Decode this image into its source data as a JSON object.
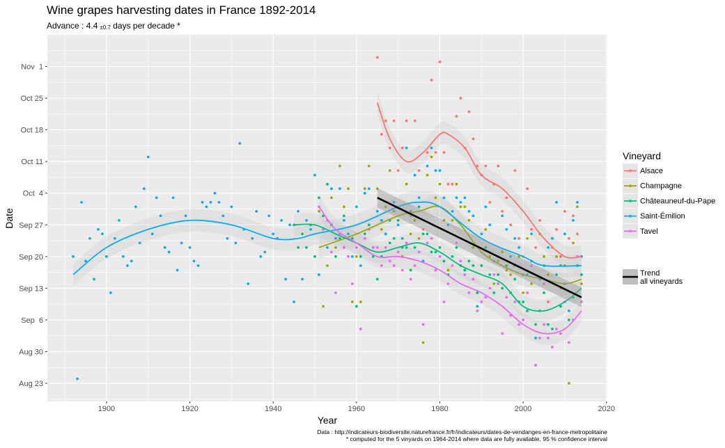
{
  "chart_data": {
    "type": "scatter",
    "title": "Wine grapes harvesting dates in France 1892-2014",
    "subtitle": {
      "prefix": "Advance : ",
      "value": "4.4",
      "ci": "±0.7",
      "suffix": " days per decade *"
    },
    "xlabel": "Year",
    "ylabel": "Date",
    "xlim": [
      1885.8,
      2020.2
    ],
    "ylim": [
      "08-19",
      "11-08"
    ],
    "x_ticks": [
      1900,
      1920,
      1940,
      1960,
      1980,
      2000,
      2020
    ],
    "y_ticks": [
      {
        "date": "08-23",
        "label": "Aug 23"
      },
      {
        "date": "08-30",
        "label": "Aug 30"
      },
      {
        "date": "09-06",
        "label": "Sep  6"
      },
      {
        "date": "09-13",
        "label": "Sep 13"
      },
      {
        "date": "09-20",
        "label": "Sep 20"
      },
      {
        "date": "09-27",
        "label": "Sep 27"
      },
      {
        "date": "10-04",
        "label": "Oct  4"
      },
      {
        "date": "10-11",
        "label": "Oct 11"
      },
      {
        "date": "10-18",
        "label": "Oct 18"
      },
      {
        "date": "10-25",
        "label": "Oct 25"
      },
      {
        "date": "11-01",
        "label": "Nov  1"
      }
    ],
    "grid": true,
    "legend": {
      "title": "Vineyard",
      "placement": "right"
    },
    "series": [
      {
        "name": "Alsace",
        "color": "#F8766D",
        "start_year": 1965,
        "dates": [
          "11-03",
          "10-17",
          "10-20",
          "10-14",
          "10-20",
          "10-09",
          "10-14",
          "10-20",
          "09-29",
          "10-20",
          "10-09",
          "09-26",
          "10-13",
          "10-29",
          "10-13",
          "11-02",
          "10-13",
          "10-06",
          "10-06",
          "10-21",
          "10-25",
          "10-14",
          "10-22",
          "10-16",
          "10-10",
          "10-08",
          "10-10",
          "10-02",
          "10-06",
          "10-10",
          "09-30",
          "10-03",
          "09-27",
          "10-09",
          "09-24",
          "09-20",
          "10-05",
          "09-26",
          "09-22",
          "09-28",
          "09-14",
          "09-10",
          "09-22",
          "09-26",
          "09-20",
          "09-30",
          "09-24",
          "09-29",
          "09-25",
          "09-20"
        ],
        "smooth": [
          [
            1965,
            "10-24"
          ],
          [
            1968,
            "10-16"
          ],
          [
            1972,
            "10-11"
          ],
          [
            1976,
            "10-13"
          ],
          [
            1980,
            "10-17"
          ],
          [
            1982,
            "10-17"
          ],
          [
            1986,
            "10-14"
          ],
          [
            1990,
            "10-08"
          ],
          [
            1995,
            "10-05"
          ],
          [
            2000,
            "09-30"
          ],
          [
            2005,
            "09-24"
          ],
          [
            2010,
            "09-20"
          ],
          [
            2014,
            "09-20"
          ]
        ]
      },
      {
        "name": "Champagne",
        "color": "#A3A500",
        "start_year": 1951,
        "dates": [
          "09-30",
          "09-09",
          "09-18",
          "10-03",
          "09-22",
          "10-10",
          "10-01",
          "10-05",
          "09-10",
          "09-20",
          "09-10",
          "10-05",
          "10-10",
          "09-22",
          "10-05",
          "09-26",
          "10-01",
          "10-09",
          "09-30",
          "09-28",
          "09-20",
          "10-06",
          "09-25",
          "09-28",
          "09-24",
          "09-01",
          "10-08",
          "10-12",
          "10-03",
          "10-06",
          "09-28",
          "09-17",
          "09-28",
          "10-06",
          "10-01",
          "10-01",
          "09-28",
          "09-22",
          "09-12",
          "09-18",
          "09-26",
          "09-20",
          "09-14",
          "09-19",
          "09-21",
          "09-17",
          "09-16",
          "09-18",
          "09-20",
          "09-12",
          "09-24",
          "09-14",
          "08-27",
          "09-25",
          "09-20",
          "09-16",
          "08-31",
          "09-20",
          "09-13",
          "09-18",
          "08-23",
          "09-23",
          "10-01",
          "09-14"
        ],
        "smooth": [
          [
            1951,
            "09-22"
          ],
          [
            1960,
            "09-25"
          ],
          [
            1970,
            "09-29"
          ],
          [
            1975,
            "09-30"
          ],
          [
            1980,
            "10-01"
          ],
          [
            1985,
            "09-27"
          ],
          [
            1990,
            "09-21"
          ],
          [
            1995,
            "09-18"
          ],
          [
            2000,
            "09-16"
          ],
          [
            2005,
            "09-15"
          ],
          [
            2010,
            "09-14"
          ],
          [
            2014,
            "09-15"
          ]
        ]
      },
      {
        "name": "Châteauneuf-du-Pape",
        "color": "#00BF7D",
        "start_year": 1945,
        "dates": [
          "09-27",
          "09-22",
          "09-25",
          "09-22",
          "09-27",
          "09-20",
          "10-03",
          "09-29",
          "10-06",
          "09-27",
          "09-20",
          "09-24",
          "09-29",
          "09-24",
          "09-24",
          "09-09",
          "09-20",
          "09-25",
          "09-27",
          "09-20",
          "09-15",
          "09-20",
          "09-25",
          "09-23",
          "09-24",
          "09-28",
          "09-22",
          "09-22",
          "09-17",
          "09-22",
          "10-01",
          "09-25",
          "09-25",
          "09-21",
          "09-21",
          "09-22",
          "09-19",
          "09-16",
          "09-20",
          "09-22",
          "09-18",
          "09-17",
          "09-19",
          "09-18",
          "09-12",
          "09-18",
          "09-22",
          "09-16",
          "09-12",
          "09-16",
          "09-13",
          "09-18",
          "09-12",
          "09-15",
          "09-10",
          "09-10",
          "09-08",
          "09-19",
          "09-05",
          "09-08",
          "09-12",
          "09-05",
          "09-04",
          "09-16",
          "09-09",
          "09-14",
          "09-06",
          "09-11",
          "09-18",
          "09-16"
        ],
        "smooth": [
          [
            1945,
            "09-27"
          ],
          [
            1950,
            "09-27"
          ],
          [
            1955,
            "09-25"
          ],
          [
            1960,
            "09-23"
          ],
          [
            1965,
            "09-21"
          ],
          [
            1970,
            "09-22"
          ],
          [
            1975,
            "09-23"
          ],
          [
            1980,
            "09-21"
          ],
          [
            1985,
            "09-18"
          ],
          [
            1990,
            "09-16"
          ],
          [
            1995,
            "09-14"
          ],
          [
            2000,
            "09-09"
          ],
          [
            2005,
            "09-08"
          ],
          [
            2010,
            "09-10"
          ],
          [
            2014,
            "09-13"
          ]
        ]
      },
      {
        "name": "Saint-Émilion",
        "color": "#00B0F6",
        "start_year": 1892,
        "dates": [
          "09-20",
          "08-24",
          "10-02",
          "09-19",
          "09-24",
          "09-15",
          "09-26",
          "09-25",
          "09-20",
          "09-12",
          "09-24",
          "09-28",
          "09-20",
          "09-18",
          "09-19",
          "10-01",
          "09-23",
          "10-05",
          "10-12",
          "09-25",
          "10-03",
          "09-29",
          "09-22",
          "09-21",
          "10-03",
          "09-17",
          "09-23",
          "09-29",
          "09-22",
          "09-19",
          "09-18",
          "10-02",
          "10-01",
          "10-02",
          "10-04",
          "10-02",
          "09-29",
          "09-24",
          "10-01",
          "09-23",
          "10-15",
          "09-26",
          "09-14",
          "09-24",
          "09-30",
          "09-20",
          "09-21",
          "09-29",
          "09-25",
          "09-24",
          "09-28",
          "09-15",
          "09-27",
          "09-10",
          "09-30",
          "09-15",
          "09-28",
          "09-26",
          "10-08",
          "09-16",
          "09-26",
          "09-22",
          "10-05",
          "09-24",
          "10-05",
          "09-28",
          "09-25",
          "09-20",
          "10-01",
          "09-18",
          "10-04",
          "10-05",
          "09-22",
          "09-30",
          "09-28",
          "09-25",
          "09-28",
          "10-02",
          "09-27",
          "09-24",
          "10-14",
          "09-30",
          "10-08",
          "10-03",
          "09-19",
          "10-10",
          "10-14",
          "10-09",
          "10-09",
          "10-03",
          "09-27",
          "09-30",
          "10-03",
          "10-02",
          "10-03",
          "09-30",
          "09-29",
          "09-09",
          "09-25",
          "10-01",
          "09-27",
          "09-19",
          "09-20",
          "09-29",
          "09-26",
          "09-20",
          "09-24",
          "09-22",
          "09-16",
          "09-16",
          "09-25",
          "09-02",
          "09-15",
          "09-18",
          "09-22",
          "09-24",
          "10-02",
          "09-18",
          "09-25",
          "09-08",
          "09-28",
          "10-02",
          "09-20"
        ],
        "smooth": [
          [
            1892,
            "09-16"
          ],
          [
            1900,
            "09-22"
          ],
          [
            1910,
            "09-26"
          ],
          [
            1920,
            "09-28"
          ],
          [
            1930,
            "09-27"
          ],
          [
            1940,
            "09-24"
          ],
          [
            1946,
            "09-24"
          ],
          [
            1950,
            "09-25"
          ],
          [
            1960,
            "09-27"
          ],
          [
            1970,
            "10-01"
          ],
          [
            1975,
            "10-02"
          ],
          [
            1980,
            "10-01"
          ],
          [
            1990,
            "09-24"
          ],
          [
            2000,
            "09-20"
          ],
          [
            2005,
            "09-18"
          ],
          [
            2014,
            "09-18"
          ]
        ]
      },
      {
        "name": "Tavel",
        "color": "#E76BF3",
        "start_year": 1951,
        "dates": [
          "10-01",
          "09-26",
          "09-28",
          "09-21",
          "09-12",
          "09-25",
          "09-22",
          "09-20",
          "09-14",
          "09-22",
          "09-04",
          "09-24",
          "09-26",
          "09-22",
          "09-22",
          "09-18",
          "09-22",
          "09-19",
          "09-18",
          "09-21",
          "09-17",
          "09-23",
          "09-15",
          "09-18",
          "09-21",
          "09-05",
          "09-23",
          "09-24",
          "09-17",
          "09-20",
          "09-10",
          "09-14",
          "09-18",
          "09-23",
          "09-19",
          "09-16",
          "09-12",
          "09-15",
          "09-08",
          "09-10",
          "09-11",
          "09-13",
          "09-16",
          "09-14",
          "09-03",
          "09-11",
          "09-07",
          "09-10",
          "09-05",
          "09-06",
          "09-12",
          "09-18",
          "08-27",
          "09-02",
          "09-05",
          "09-02",
          "08-31",
          "09-04",
          "09-03",
          "09-10",
          "09-01",
          "09-06",
          "09-20",
          "09-10"
        ],
        "smooth": [
          [
            1951,
            "10-01"
          ],
          [
            1955,
            "09-26"
          ],
          [
            1960,
            "09-23"
          ],
          [
            1965,
            "09-20"
          ],
          [
            1970,
            "09-20"
          ],
          [
            1975,
            "09-19"
          ],
          [
            1980,
            "09-17"
          ],
          [
            1985,
            "09-14"
          ],
          [
            1990,
            "09-12"
          ],
          [
            1995,
            "09-09"
          ],
          [
            2000,
            "09-05"
          ],
          [
            2005,
            "09-03"
          ],
          [
            2010,
            "09-04"
          ],
          [
            2014,
            "09-08"
          ]
        ]
      }
    ],
    "trend": {
      "label_line1": "Trend",
      "label_line2": "all vineyards",
      "color": "#000000",
      "points": [
        [
          1965,
          "10-03"
        ],
        [
          2014,
          "09-11"
        ]
      ]
    },
    "caption": {
      "line1": "Data : http://indicateurs-biodiversite.naturefrance.fr/fr/indicateurs/dates-de-vendanges-en-france-metropolitaine",
      "line2": "* computed for the 5 vinyards on 1964-2014 where data are fully available, 95 % confidence interval"
    },
    "colors": {
      "panel": "#EBEBEB",
      "grid": "#FFFFFF",
      "band": "#BEBEBE"
    }
  }
}
